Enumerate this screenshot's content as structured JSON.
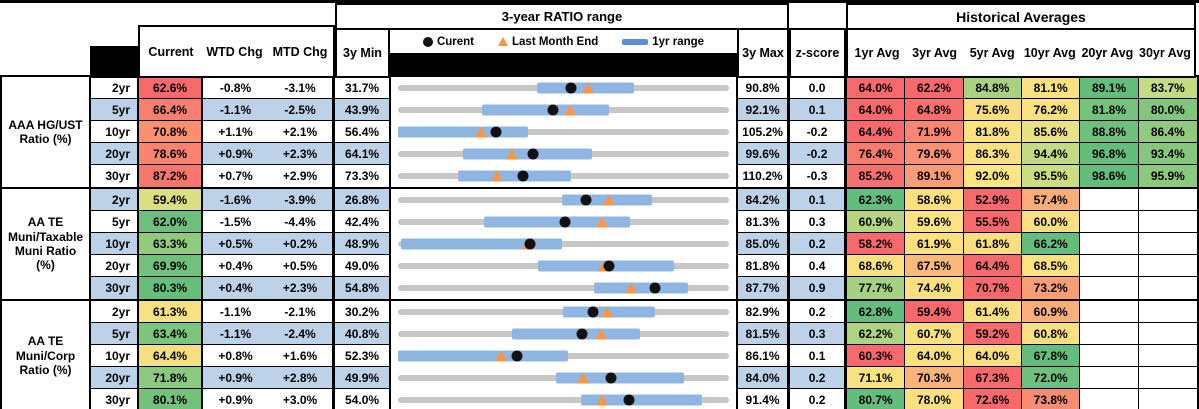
{
  "header": {
    "chart_group_title": "3-year RATIO range",
    "hist_group_title": "Historical Averages",
    "col_current": "Current",
    "col_wtd": "WTD Chg",
    "col_mtd": "MTD Chg",
    "col_min": "3y Min",
    "col_max": "3y Max",
    "col_zscore": "z-score",
    "avg_columns": [
      "1yr Avg",
      "3yr Avg",
      "5yr Avg",
      "10yr Avg",
      "20yr Avg",
      "30yr Avg"
    ],
    "legend": {
      "current": "Curent",
      "last_month": "Last Month End",
      "range": "1yr range"
    }
  },
  "colors": {
    "stripe": "#BCD2E8",
    "track": "#C7C7C7",
    "range_bar": "#8FB5E2",
    "dot": "#111111",
    "triangle": "#F79646",
    "legend_bar": "#5C8ED4",
    "scale_red": "#F8696B",
    "scale_yellow": "#FBE07F",
    "scale_green": "#63BE7B"
  },
  "chart_data": {
    "type": "table",
    "title": "3-year RATIO range with Historical Averages",
    "markers": {
      "dot": "Current value",
      "triangle": "Last Month End value",
      "bar": "1yr range",
      "track": "3y min-max range"
    },
    "sections": [
      {
        "label": "AAA HG/UST Ratio (%)",
        "rows": [
          {
            "tenor": "2yr",
            "current": "62.6%",
            "cur_bg": "#F8696B",
            "wtd": "-0.8%",
            "mtd": "-3.1%",
            "min": "31.7%",
            "max": "90.8%",
            "z": "0.0",
            "scale": [
              31.7,
              90.8
            ],
            "bar": [
              56.6,
              73.8
            ],
            "dot": 62.6,
            "tri": 65.7,
            "avgs": [
              [
                "64.0%",
                "#F8696B"
              ],
              [
                "62.2%",
                "#F8696B"
              ],
              [
                "84.8%",
                "#A8D27F"
              ],
              [
                "81.1%",
                "#FBE27F"
              ],
              [
                "89.1%",
                "#63BE7B"
              ],
              [
                "83.7%",
                "#C3DB81"
              ]
            ]
          },
          {
            "tenor": "5yr",
            "current": "66.4%",
            "cur_bg": "#F87E6E",
            "wtd": "-1.1%",
            "mtd": "-2.5%",
            "min": "43.9%",
            "max": "92.1%",
            "z": "0.1",
            "scale": [
              43.9,
              92.1
            ],
            "bar": [
              56.2,
              74.6
            ],
            "dot": 66.4,
            "tri": 68.9,
            "avgs": [
              [
                "64.0%",
                "#F8696B"
              ],
              [
                "64.8%",
                "#F86F6C"
              ],
              [
                "75.6%",
                "#FBDF7F"
              ],
              [
                "76.2%",
                "#FAE07F"
              ],
              [
                "81.8%",
                "#74C37C"
              ],
              [
                "80.0%",
                "#82C67D"
              ]
            ]
          },
          {
            "tenor": "10yr",
            "current": "70.8%",
            "cur_bg": "#F9916F",
            "wtd": "+1.1%",
            "mtd": "+2.1%",
            "min": "56.4%",
            "max": "105.2%",
            "z": "-0.2",
            "scale": [
              56.4,
              105.2
            ],
            "bar": [
              56.4,
              75.6
            ],
            "dot": 70.8,
            "tri": 68.7,
            "avgs": [
              [
                "64.4%",
                "#F8696B"
              ],
              [
                "71.9%",
                "#F98671"
              ],
              [
                "81.8%",
                "#FCE380"
              ],
              [
                "85.6%",
                "#E9E282"
              ],
              [
                "88.8%",
                "#6EC17C"
              ],
              [
                "86.4%",
                "#8FCA7E"
              ]
            ]
          },
          {
            "tenor": "20yr",
            "current": "78.6%",
            "cur_bg": "#F8836E",
            "wtd": "+0.9%",
            "mtd": "+2.3%",
            "min": "64.1%",
            "max": "99.6%",
            "z": "-0.2",
            "scale": [
              64.1,
              99.6
            ],
            "bar": [
              71.1,
              84.9
            ],
            "dot": 78.6,
            "tri": 76.3,
            "avgs": [
              [
                "76.4%",
                "#F87B6D"
              ],
              [
                "79.6%",
                "#FA9273"
              ],
              [
                "86.3%",
                "#FBE07F"
              ],
              [
                "94.4%",
                "#C2DA81"
              ],
              [
                "96.8%",
                "#63BE7B"
              ],
              [
                "93.4%",
                "#85C77D"
              ]
            ]
          },
          {
            "tenor": "30yr",
            "current": "87.2%",
            "cur_bg": "#F8766B",
            "wtd": "+0.7%",
            "mtd": "+2.9%",
            "min": "73.3%",
            "max": "110.2%",
            "z": "-0.3",
            "scale": [
              73.3,
              110.2
            ],
            "bar": [
              80.0,
              92.6
            ],
            "dot": 87.2,
            "tri": 84.3,
            "avgs": [
              [
                "85.2%",
                "#F8716C"
              ],
              [
                "89.1%",
                "#FA9C74"
              ],
              [
                "92.0%",
                "#FCE681"
              ],
              [
                "95.5%",
                "#CCDC81"
              ],
              [
                "98.6%",
                "#63BE7B"
              ],
              [
                "95.9%",
                "#8BC97E"
              ]
            ]
          }
        ]
      },
      {
        "label": "AA TE Muni/Taxable Muni Ratio (%)",
        "rows": [
          {
            "tenor": "2yr",
            "current": "59.4%",
            "cur_bg": "#DBDE82",
            "wtd": "-1.6%",
            "mtd": "-3.9%",
            "min": "26.8%",
            "max": "84.2%",
            "z": "0.1",
            "scale": [
              26.8,
              84.2
            ],
            "bar": [
              55.3,
              70.9
            ],
            "dot": 59.4,
            "tri": 63.3,
            "avgs": [
              [
                "62.3%",
                "#63BE7B"
              ],
              [
                "58.6%",
                "#FCE07F"
              ],
              [
                "52.9%",
                "#F8696B"
              ],
              [
                "57.4%",
                "#FBAD77"
              ],
              [
                "",
                ""
              ],
              [
                "",
                ""
              ]
            ]
          },
          {
            "tenor": "5yr",
            "current": "62.0%",
            "cur_bg": "#6CC07C",
            "wtd": "-1.5%",
            "mtd": "-4.4%",
            "min": "42.4%",
            "max": "81.3%",
            "z": "0.3",
            "scale": [
              42.4,
              81.3
            ],
            "bar": [
              52.5,
              69.7
            ],
            "dot": 62.0,
            "tri": 66.4,
            "avgs": [
              [
                "60.9%",
                "#B5D680"
              ],
              [
                "59.6%",
                "#FCE280"
              ],
              [
                "55.5%",
                "#F8696B"
              ],
              [
                "60.0%",
                "#FBE07F"
              ],
              [
                "",
                ""
              ],
              [
                "",
                ""
              ]
            ]
          },
          {
            "tenor": "10yr",
            "current": "63.3%",
            "cur_bg": "#8FCA7D",
            "wtd": "+0.5%",
            "mtd": "+0.2%",
            "min": "48.9%",
            "max": "85.0%",
            "z": "0.2",
            "scale": [
              48.9,
              85.0
            ],
            "bar": [
              49.2,
              66.8
            ],
            "dot": 63.3,
            "tri": 63.1,
            "avgs": [
              [
                "58.2%",
                "#F8696B"
              ],
              [
                "61.9%",
                "#FBE07F"
              ],
              [
                "61.8%",
                "#FBDF7F"
              ],
              [
                "66.2%",
                "#63BE7B"
              ],
              [
                "",
                ""
              ],
              [
                "",
                ""
              ]
            ]
          },
          {
            "tenor": "20yr",
            "current": "69.9%",
            "cur_bg": "#70C17C",
            "wtd": "+0.4%",
            "mtd": "+0.5%",
            "min": "49.0%",
            "max": "81.8%",
            "z": "0.4",
            "scale": [
              49.0,
              81.8
            ],
            "bar": [
              62.9,
              76.3
            ],
            "dot": 69.9,
            "tri": 69.4,
            "avgs": [
              [
                "68.6%",
                "#FBE17F"
              ],
              [
                "67.5%",
                "#FBBA79"
              ],
              [
                "64.4%",
                "#F8696B"
              ],
              [
                "68.5%",
                "#FCE380"
              ],
              [
                "",
                ""
              ],
              [
                "",
                ""
              ]
            ]
          },
          {
            "tenor": "30yr",
            "current": "80.3%",
            "cur_bg": "#65BF7B",
            "wtd": "+0.4%",
            "mtd": "+2.3%",
            "min": "54.8%",
            "max": "87.7%",
            "z": "0.9",
            "scale": [
              54.8,
              87.7
            ],
            "bar": [
              74.3,
              83.6
            ],
            "dot": 80.3,
            "tri": 78.0,
            "avgs": [
              [
                "77.7%",
                "#A6D17E"
              ],
              [
                "74.4%",
                "#FBE07F"
              ],
              [
                "70.7%",
                "#F8696B"
              ],
              [
                "73.2%",
                "#FA9E75"
              ],
              [
                "",
                ""
              ],
              [
                "",
                ""
              ]
            ]
          }
        ]
      },
      {
        "label": "AA TE Muni/Corp Ratio (%)",
        "rows": [
          {
            "tenor": "2yr",
            "current": "61.3%",
            "cur_bg": "#F8E180",
            "wtd": "-1.1%",
            "mtd": "-2.1%",
            "min": "30.2%",
            "max": "82.9%",
            "z": "0.2",
            "scale": [
              30.2,
              82.9
            ],
            "bar": [
              56.4,
              71.1
            ],
            "dot": 61.3,
            "tri": 63.4,
            "avgs": [
              [
                "62.8%",
                "#63BE7B"
              ],
              [
                "59.4%",
                "#F8696B"
              ],
              [
                "61.4%",
                "#FAE07F"
              ],
              [
                "60.9%",
                "#FBAE77"
              ],
              [
                "",
                ""
              ],
              [
                "",
                ""
              ]
            ]
          },
          {
            "tenor": "5yr",
            "current": "63.4%",
            "cur_bg": "#7CC57D",
            "wtd": "-1.1%",
            "mtd": "-2.4%",
            "min": "40.8%",
            "max": "81.5%",
            "z": "0.3",
            "scale": [
              40.8,
              81.5
            ],
            "bar": [
              54.8,
              70.6
            ],
            "dot": 63.4,
            "tri": 65.8,
            "avgs": [
              [
                "62.2%",
                "#AFD47F"
              ],
              [
                "60.7%",
                "#FBE07F"
              ],
              [
                "59.2%",
                "#F8696B"
              ],
              [
                "60.8%",
                "#FBE07F"
              ],
              [
                "",
                ""
              ],
              [
                "",
                ""
              ]
            ]
          },
          {
            "tenor": "10yr",
            "current": "64.4%",
            "cur_bg": "#F4E07F",
            "wtd": "+0.8%",
            "mtd": "+1.6%",
            "min": "52.3%",
            "max": "86.1%",
            "z": "0.1",
            "scale": [
              52.3,
              86.1
            ],
            "bar": [
              52.3,
              69.7
            ],
            "dot": 64.4,
            "tri": 62.8,
            "avgs": [
              [
                "60.3%",
                "#F8696B"
              ],
              [
                "64.0%",
                "#FBE07F"
              ],
              [
                "64.0%",
                "#FBE07F"
              ],
              [
                "67.8%",
                "#63BE7B"
              ],
              [
                "",
                ""
              ],
              [
                "",
                ""
              ]
            ]
          },
          {
            "tenor": "20yr",
            "current": "71.8%",
            "cur_bg": "#8AC97E",
            "wtd": "+0.9%",
            "mtd": "+2.8%",
            "min": "49.9%",
            "max": "84.0%",
            "z": "0.2",
            "scale": [
              49.9,
              84.0
            ],
            "bar": [
              66.2,
              79.4
            ],
            "dot": 71.8,
            "tri": 69.0,
            "avgs": [
              [
                "71.1%",
                "#FBE17F"
              ],
              [
                "70.3%",
                "#FBB478"
              ],
              [
                "67.3%",
                "#F8696B"
              ],
              [
                "72.0%",
                "#6DC17C"
              ],
              [
                "",
                ""
              ],
              [
                "",
                ""
              ]
            ]
          },
          {
            "tenor": "30yr",
            "current": "80.1%",
            "cur_bg": "#73C27C",
            "wtd": "+0.9%",
            "mtd": "+3.0%",
            "min": "54.0%",
            "max": "91.4%",
            "z": "0.2",
            "scale": [
              54.0,
              91.4
            ],
            "bar": [
              74.7,
              88.4
            ],
            "dot": 80.1,
            "tri": 77.1,
            "avgs": [
              [
                "80.7%",
                "#63BE7B"
              ],
              [
                "78.0%",
                "#FBE07F"
              ],
              [
                "72.6%",
                "#F8696B"
              ],
              [
                "73.8%",
                "#F98D71"
              ],
              [
                "",
                ""
              ],
              [
                "",
                ""
              ]
            ]
          }
        ]
      }
    ]
  }
}
